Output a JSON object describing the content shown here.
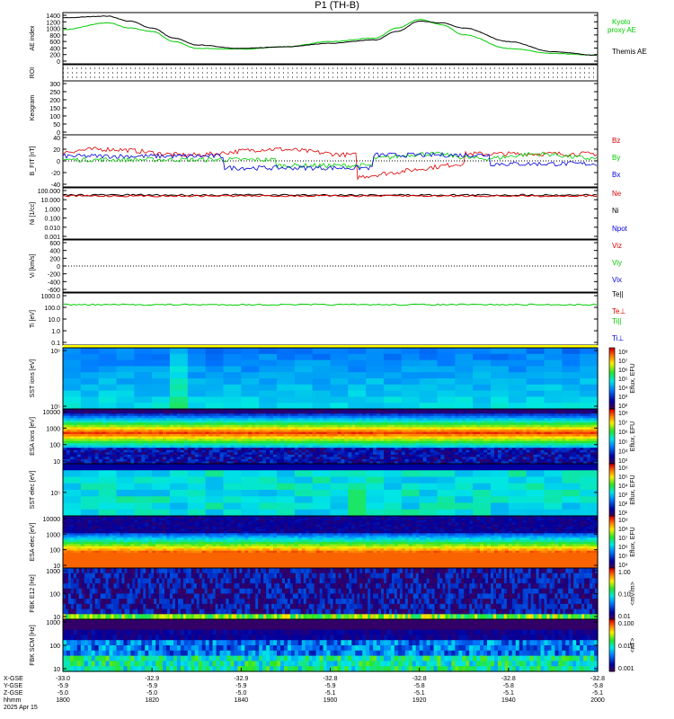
{
  "title": "P1 (TH-B)",
  "panels": [
    {
      "id": "ae",
      "ylabel": "AE index",
      "yticks": [
        "1400",
        "1200",
        "1000",
        "800",
        "600",
        "400",
        "200",
        "0"
      ],
      "legend": [
        {
          "text": "Kyoto",
          "color": "#00cc00"
        },
        {
          "text": "proxy AE",
          "color": "#00cc00"
        },
        {
          "text": "Themis AE",
          "color": "#000000"
        }
      ]
    },
    {
      "id": "roi",
      "ylabel": "ROI",
      "yticks": []
    },
    {
      "id": "keogram",
      "ylabel": "Keogram",
      "yticks": [
        "300",
        "250",
        "200",
        "150",
        "100",
        "50",
        "0"
      ]
    },
    {
      "id": "bfield",
      "ylabel": "B_FIT [nT]",
      "yticks": [
        "40",
        "20",
        "0",
        "-20",
        "-40"
      ],
      "legend": [
        {
          "text": "Bz",
          "color": "#dd0000"
        },
        {
          "text": "By",
          "color": "#00cc00"
        },
        {
          "text": "Bx",
          "color": "#0000dd"
        }
      ]
    },
    {
      "id": "ni",
      "ylabel": "Ni [1/cc]",
      "yticks": [
        "100.000",
        "10.000",
        "1.000",
        "0.100",
        "0.010",
        "0.001"
      ],
      "legend": [
        {
          "text": "Ne",
          "color": "#dd0000"
        },
        {
          "text": "Ni",
          "color": "#000000"
        },
        {
          "text": "Npot",
          "color": "#0000dd"
        }
      ]
    },
    {
      "id": "vi",
      "ylabel": "Vi [km/s]",
      "yticks": [
        "600",
        "400",
        "200",
        "0",
        "-200",
        "-400",
        "-600"
      ],
      "legend": [
        {
          "text": "Viz",
          "color": "#dd0000"
        },
        {
          "text": "Viy",
          "color": "#00cc00"
        },
        {
          "text": "Vix",
          "color": "#0000dd"
        }
      ]
    },
    {
      "id": "ti",
      "ylabel": "Ti [eV]",
      "yticks": [
        "1000.0",
        "100.0",
        "10.0",
        "1.0",
        "0.1"
      ],
      "legend": [
        {
          "text": "Te||",
          "color": "#000000"
        },
        {
          "text": "Te⊥",
          "color": "#dd0000"
        },
        {
          "text": "Ti||",
          "color": "#00cc00"
        },
        {
          "text": "Ti⊥",
          "color": "#0000dd"
        }
      ]
    },
    {
      "id": "sst_i",
      "ylabel": "SST ions [eV]",
      "yticks": [
        "10⁶",
        "10⁵"
      ],
      "cbar_ticks": [
        "10⁸",
        "10⁷",
        "10⁶",
        "10⁵",
        "10⁴",
        "10³",
        "10²"
      ],
      "cbar_label": "Eflux, EFU"
    },
    {
      "id": "esa_i",
      "ylabel": "ESA ions [eV]",
      "yticks": [
        "10000",
        "1000",
        "100",
        "10"
      ],
      "cbar_ticks": [
        "10⁸",
        "10⁷",
        "10⁶",
        "10⁵",
        "10⁴",
        "10³"
      ],
      "cbar_label": "Eflux, EFU"
    },
    {
      "id": "sst_e",
      "ylabel": "SST elec [eV]",
      "yticks": [
        "10⁵"
      ],
      "cbar_ticks": [
        "10⁶",
        "10⁵",
        "10⁴",
        "10³",
        "10²",
        "10¹"
      ],
      "cbar_label": "Eflux, EFU"
    },
    {
      "id": "esa_e",
      "ylabel": "ESA elec [eV]",
      "yticks": [
        "10000",
        "1000",
        "100",
        "10"
      ],
      "cbar_ticks": [
        "10⁹",
        "10⁸",
        "10⁷",
        "10⁶",
        "10⁵",
        "10⁴"
      ],
      "cbar_label": "Eflux, EFU"
    },
    {
      "id": "fbk_e",
      "ylabel": "FBK E12 [Hz]",
      "yticks": [
        "1000",
        "100",
        "10"
      ],
      "cbar_ticks": [
        "1.00",
        "0.10",
        "0.01"
      ],
      "cbar_label": "<mV/m>"
    },
    {
      "id": "fbk_b",
      "ylabel": "FBK SCM [Hz]",
      "yticks": [
        "1000",
        "100",
        "10"
      ],
      "cbar_ticks": [
        "0.100",
        "0.010",
        "0.001"
      ],
      "cbar_label": "<nT>"
    }
  ],
  "xaxis": {
    "row_labels": [
      "X-GSE",
      "Y-GSE",
      "Z-GSE",
      "hhmm",
      "2025 Apr 15"
    ],
    "ticks": [
      {
        "vals": [
          "-33.0",
          "-5.9",
          "-5.0",
          "1800"
        ]
      },
      {
        "vals": [
          "-32.9",
          "-5.9",
          "-5.0",
          "1820"
        ]
      },
      {
        "vals": [
          "-32.9",
          "-5.9",
          "-5.0",
          "1840"
        ]
      },
      {
        "vals": [
          "-32.8",
          "-5.9",
          "-5.1",
          "1900"
        ]
      },
      {
        "vals": [
          "-32.8",
          "-5.8",
          "-5.1",
          "1920"
        ]
      },
      {
        "vals": [
          "-32.8",
          "-5.8",
          "-5.1",
          "1940"
        ]
      },
      {
        "vals": [
          "-32.8",
          "-5.8",
          "-5.1",
          "2000"
        ]
      }
    ]
  },
  "chart_data": {
    "type": "line",
    "title": "P1 (TH-B)",
    "x_unit": "hhmm",
    "x_range": [
      "1800",
      "2000"
    ],
    "series": [
      {
        "name": "Kyoto proxy AE",
        "panel": "AE index",
        "color": "#00cc00",
        "x": [
          "1800",
          "1810",
          "1815",
          "1820",
          "1825",
          "1830",
          "1840",
          "1850",
          "1900",
          "1910",
          "1915",
          "1920",
          "1925",
          "1930",
          "1940",
          "1950",
          "2000"
        ],
        "values": [
          950,
          1150,
          1000,
          900,
          600,
          400,
          380,
          450,
          600,
          700,
          1000,
          1250,
          1100,
          800,
          400,
          250,
          200
        ]
      },
      {
        "name": "Themis AE",
        "panel": "AE index",
        "color": "#000000",
        "x": [
          "1800",
          "1810",
          "1815",
          "1820",
          "1825",
          "1830",
          "1840",
          "1850",
          "1900",
          "1910",
          "1915",
          "1920",
          "1925",
          "1930",
          "1940",
          "1950",
          "2000"
        ],
        "values": [
          1300,
          1350,
          1200,
          1000,
          700,
          500,
          400,
          450,
          550,
          650,
          900,
          1200,
          1150,
          1000,
          600,
          300,
          200
        ]
      }
    ],
    "ylim": [
      0,
      1400
    ]
  }
}
